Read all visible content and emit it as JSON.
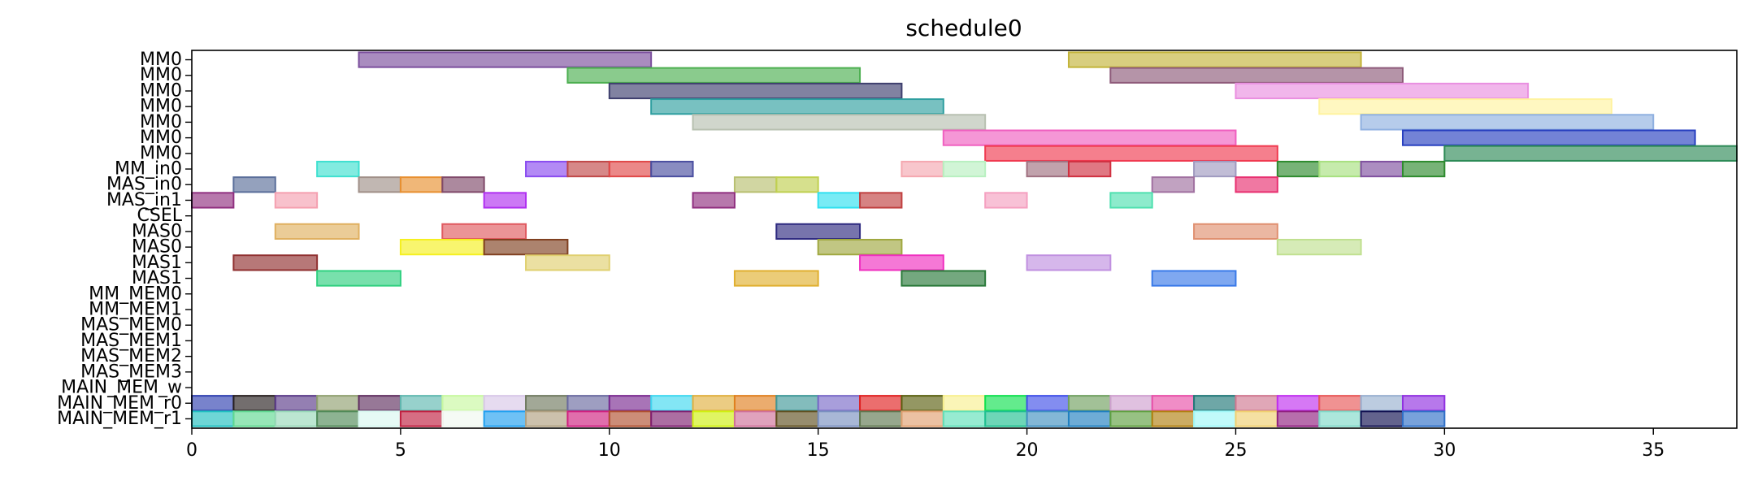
{
  "chart_data": {
    "type": "gantt",
    "title": "schedule0",
    "xlim": [
      0,
      37
    ],
    "x_ticks": [
      0,
      5,
      10,
      15,
      20,
      25,
      30,
      35
    ],
    "grid": false,
    "rows": [
      "MM0",
      "MM0",
      "MM0",
      "MM0",
      "MM0",
      "MM0",
      "MM0",
      "MM_in0",
      "MAS_in0",
      "MAS_in1",
      "CSEL",
      "MAS0",
      "MAS0",
      "MAS1",
      "MAS1",
      "MM_MEM0",
      "MM_MEM1",
      "MAS_MEM0",
      "MAS_MEM1",
      "MAS_MEM2",
      "MAS_MEM3",
      "MAIN_MEM_w",
      "MAIN_MEM_r0",
      "MAIN_MEM_r1"
    ],
    "tasks": [
      {
        "row": 0,
        "start": 4,
        "end": 11,
        "color": "#7b4f9d"
      },
      {
        "row": 0,
        "start": 21,
        "end": 28,
        "color": "#c3b43a"
      },
      {
        "row": 1,
        "start": 9,
        "end": 16,
        "color": "#4caf50"
      },
      {
        "row": 1,
        "start": 22,
        "end": 29,
        "color": "#8e5b7a"
      },
      {
        "row": 2,
        "start": 10,
        "end": 17,
        "color": "#3e3f6e"
      },
      {
        "row": 2,
        "start": 25,
        "end": 32,
        "color": "#e98fe0"
      },
      {
        "row": 3,
        "start": 11,
        "end": 18,
        "color": "#2f9fa0"
      },
      {
        "row": 3,
        "start": 27,
        "end": 34,
        "color": "#fff3a0"
      },
      {
        "row": 4,
        "start": 12,
        "end": 19,
        "color": "#b7c0b0"
      },
      {
        "row": 4,
        "start": 28,
        "end": 35,
        "color": "#8fb0e0"
      },
      {
        "row": 5,
        "start": 18,
        "end": 25,
        "color": "#f060c0"
      },
      {
        "row": 5,
        "start": 29,
        "end": 36,
        "color": "#2840c0"
      },
      {
        "row": 6,
        "start": 19,
        "end": 26,
        "color": "#f03a50"
      },
      {
        "row": 6,
        "start": 30,
        "end": 37,
        "color": "#2e8b57"
      },
      {
        "row": 7,
        "start": 3,
        "end": 4,
        "color": "#3fe0d0"
      },
      {
        "row": 7,
        "start": 8,
        "end": 9,
        "color": "#8a4cf0"
      },
      {
        "row": 7,
        "start": 9,
        "end": 10,
        "color": "#c04848"
      },
      {
        "row": 7,
        "start": 10,
        "end": 11,
        "color": "#e04848"
      },
      {
        "row": 7,
        "start": 11,
        "end": 12,
        "color": "#4a4fa0"
      },
      {
        "row": 7,
        "start": 17,
        "end": 18,
        "color": "#f5a8b0"
      },
      {
        "row": 7,
        "start": 18,
        "end": 19,
        "color": "#b8f0c0"
      },
      {
        "row": 7,
        "start": 20,
        "end": 21,
        "color": "#a07080"
      },
      {
        "row": 7,
        "start": 21,
        "end": 22,
        "color": "#d03040"
      },
      {
        "row": 7,
        "start": 24,
        "end": 25,
        "color": "#a09ac0"
      },
      {
        "row": 7,
        "start": 26,
        "end": 27,
        "color": "#2e8b2e"
      },
      {
        "row": 7,
        "start": 27,
        "end": 28,
        "color": "#a8e080"
      },
      {
        "row": 7,
        "start": 28,
        "end": 29,
        "color": "#8050a0"
      },
      {
        "row": 7,
        "start": 29,
        "end": 30,
        "color": "#2e8b2e"
      },
      {
        "row": 8,
        "start": 1,
        "end": 2,
        "color": "#5a6e9a"
      },
      {
        "row": 8,
        "start": 4,
        "end": 5,
        "color": "#a09088"
      },
      {
        "row": 8,
        "start": 5,
        "end": 6,
        "color": "#e89030"
      },
      {
        "row": 8,
        "start": 6,
        "end": 7,
        "color": "#804a6a"
      },
      {
        "row": 8,
        "start": 13,
        "end": 14,
        "color": "#b8c070"
      },
      {
        "row": 8,
        "start": 14,
        "end": 15,
        "color": "#c0d050"
      },
      {
        "row": 8,
        "start": 23,
        "end": 24,
        "color": "#a070a0"
      },
      {
        "row": 8,
        "start": 25,
        "end": 26,
        "color": "#e83070"
      },
      {
        "row": 9,
        "start": 0,
        "end": 1,
        "color": "#903080"
      },
      {
        "row": 9,
        "start": 2,
        "end": 3,
        "color": "#f5a0b0"
      },
      {
        "row": 9,
        "start": 7,
        "end": 8,
        "color": "#b030f0"
      },
      {
        "row": 9,
        "start": 12,
        "end": 13,
        "color": "#903080"
      },
      {
        "row": 9,
        "start": 15,
        "end": 16,
        "color": "#30e0f0"
      },
      {
        "row": 9,
        "start": 16,
        "end": 17,
        "color": "#c04040"
      },
      {
        "row": 9,
        "start": 19,
        "end": 20,
        "color": "#f5a0c0"
      },
      {
        "row": 9,
        "start": 22,
        "end": 23,
        "color": "#50e0b0"
      },
      {
        "row": 11,
        "start": 2,
        "end": 4,
        "color": "#e0b060"
      },
      {
        "row": 11,
        "start": 6,
        "end": 8,
        "color": "#e05a60"
      },
      {
        "row": 11,
        "start": 14,
        "end": 16,
        "color": "#2e2a80"
      },
      {
        "row": 11,
        "start": 24,
        "end": 26,
        "color": "#e09070"
      },
      {
        "row": 12,
        "start": 5,
        "end": 7,
        "color": "#f5f020"
      },
      {
        "row": 12,
        "start": 7,
        "end": 9,
        "color": "#804020"
      },
      {
        "row": 12,
        "start": 15,
        "end": 17,
        "color": "#a0a840"
      },
      {
        "row": 12,
        "start": 26,
        "end": 28,
        "color": "#c0e090"
      },
      {
        "row": 13,
        "start": 1,
        "end": 3,
        "color": "#903030"
      },
      {
        "row": 13,
        "start": 8,
        "end": 10,
        "color": "#e0d070"
      },
      {
        "row": 13,
        "start": 16,
        "end": 18,
        "color": "#f030c0"
      },
      {
        "row": 13,
        "start": 20,
        "end": 22,
        "color": "#c090e0"
      },
      {
        "row": 14,
        "start": 3,
        "end": 5,
        "color": "#30d080"
      },
      {
        "row": 14,
        "start": 13,
        "end": 15,
        "color": "#e0b030"
      },
      {
        "row": 14,
        "start": 17,
        "end": 19,
        "color": "#2a7a3a"
      },
      {
        "row": 14,
        "start": 23,
        "end": 25,
        "color": "#3a7ae8"
      },
      {
        "row": 22,
        "start": 0,
        "end": 1,
        "color": "#3040b0"
      },
      {
        "row": 22,
        "start": 1,
        "end": 2,
        "color": "#282020"
      },
      {
        "row": 22,
        "start": 2,
        "end": 3,
        "color": "#5a3a88"
      },
      {
        "row": 22,
        "start": 3,
        "end": 4,
        "color": "#90a070"
      },
      {
        "row": 22,
        "start": 4,
        "end": 5,
        "color": "#603060"
      },
      {
        "row": 22,
        "start": 5,
        "end": 6,
        "color": "#60b8b0"
      },
      {
        "row": 22,
        "start": 6,
        "end": 7,
        "color": "#c8f8a0"
      },
      {
        "row": 22,
        "start": 7,
        "end": 8,
        "color": "#d8c8e8"
      },
      {
        "row": 22,
        "start": 8,
        "end": 9,
        "color": "#707a60"
      },
      {
        "row": 22,
        "start": 9,
        "end": 10,
        "color": "#6a6aa0"
      },
      {
        "row": 22,
        "start": 10,
        "end": 11,
        "color": "#7a2a90"
      },
      {
        "row": 22,
        "start": 11,
        "end": 12,
        "color": "#40d8f0"
      },
      {
        "row": 22,
        "start": 12,
        "end": 13,
        "color": "#e0b040"
      },
      {
        "row": 22,
        "start": 13,
        "end": 14,
        "color": "#e08020"
      },
      {
        "row": 22,
        "start": 14,
        "end": 15,
        "color": "#409898"
      },
      {
        "row": 22,
        "start": 15,
        "end": 16,
        "color": "#7a6ac8"
      },
      {
        "row": 22,
        "start": 16,
        "end": 17,
        "color": "#e02020"
      },
      {
        "row": 22,
        "start": 17,
        "end": 18,
        "color": "#5a6010"
      },
      {
        "row": 22,
        "start": 18,
        "end": 19,
        "color": "#f8f090"
      },
      {
        "row": 22,
        "start": 19,
        "end": 20,
        "color": "#10e050"
      },
      {
        "row": 22,
        "start": 20,
        "end": 21,
        "color": "#4050e8"
      },
      {
        "row": 22,
        "start": 21,
        "end": 22,
        "color": "#70a060"
      },
      {
        "row": 22,
        "start": 22,
        "end": 23,
        "color": "#d0a0d0"
      },
      {
        "row": 22,
        "start": 23,
        "end": 24,
        "color": "#e850a8"
      },
      {
        "row": 22,
        "start": 24,
        "end": 25,
        "color": "#207878"
      },
      {
        "row": 22,
        "start": 25,
        "end": 26,
        "color": "#d07890"
      },
      {
        "row": 22,
        "start": 26,
        "end": 27,
        "color": "#c030f0"
      },
      {
        "row": 22,
        "start": 27,
        "end": 28,
        "color": "#e85858"
      },
      {
        "row": 22,
        "start": 28,
        "end": 29,
        "color": "#98b0d0"
      },
      {
        "row": 22,
        "start": 29,
        "end": 30,
        "color": "#9030e0"
      },
      {
        "row": 23,
        "start": 0,
        "end": 1,
        "color": "#20c0c0"
      },
      {
        "row": 23,
        "start": 1,
        "end": 2,
        "color": "#60d890"
      },
      {
        "row": 23,
        "start": 2,
        "end": 3,
        "color": "#98d8b8"
      },
      {
        "row": 23,
        "start": 3,
        "end": 4,
        "color": "#508a58"
      },
      {
        "row": 23,
        "start": 4,
        "end": 5,
        "color": "#d8f8f0"
      },
      {
        "row": 23,
        "start": 5,
        "end": 6,
        "color": "#c02040"
      },
      {
        "row": 23,
        "start": 6,
        "end": 7,
        "color": "#f0f8f0"
      },
      {
        "row": 23,
        "start": 7,
        "end": 8,
        "color": "#20a0f0"
      },
      {
        "row": 23,
        "start": 8,
        "end": 9,
        "color": "#b0a080"
      },
      {
        "row": 23,
        "start": 9,
        "end": 10,
        "color": "#d02080"
      },
      {
        "row": 23,
        "start": 10,
        "end": 11,
        "color": "#b05030"
      },
      {
        "row": 23,
        "start": 11,
        "end": 12,
        "color": "#802070"
      },
      {
        "row": 23,
        "start": 12,
        "end": 13,
        "color": "#d0f010"
      },
      {
        "row": 23,
        "start": 13,
        "end": 14,
        "color": "#d07098"
      },
      {
        "row": 23,
        "start": 14,
        "end": 15,
        "color": "#605020"
      },
      {
        "row": 23,
        "start": 15,
        "end": 16,
        "color": "#7a90c0"
      },
      {
        "row": 23,
        "start": 16,
        "end": 17,
        "color": "#607850"
      },
      {
        "row": 23,
        "start": 17,
        "end": 18,
        "color": "#e0a070"
      },
      {
        "row": 23,
        "start": 18,
        "end": 19,
        "color": "#60e0b8"
      },
      {
        "row": 23,
        "start": 19,
        "end": 20,
        "color": "#20c090"
      },
      {
        "row": 23,
        "start": 20,
        "end": 21,
        "color": "#4090c0"
      },
      {
        "row": 23,
        "start": 21,
        "end": 22,
        "color": "#2080c0"
      },
      {
        "row": 23,
        "start": 22,
        "end": 23,
        "color": "#60a040"
      },
      {
        "row": 23,
        "start": 23,
        "end": 24,
        "color": "#b08010"
      },
      {
        "row": 23,
        "start": 24,
        "end": 25,
        "color": "#a0f8f8"
      },
      {
        "row": 23,
        "start": 25,
        "end": 26,
        "color": "#f0d070"
      },
      {
        "row": 23,
        "start": 26,
        "end": 27,
        "color": "#902080"
      },
      {
        "row": 23,
        "start": 27,
        "end": 28,
        "color": "#80d8c8"
      },
      {
        "row": 23,
        "start": 28,
        "end": 29,
        "color": "#101050"
      },
      {
        "row": 23,
        "start": 29,
        "end": 30,
        "color": "#3070c8"
      }
    ]
  }
}
